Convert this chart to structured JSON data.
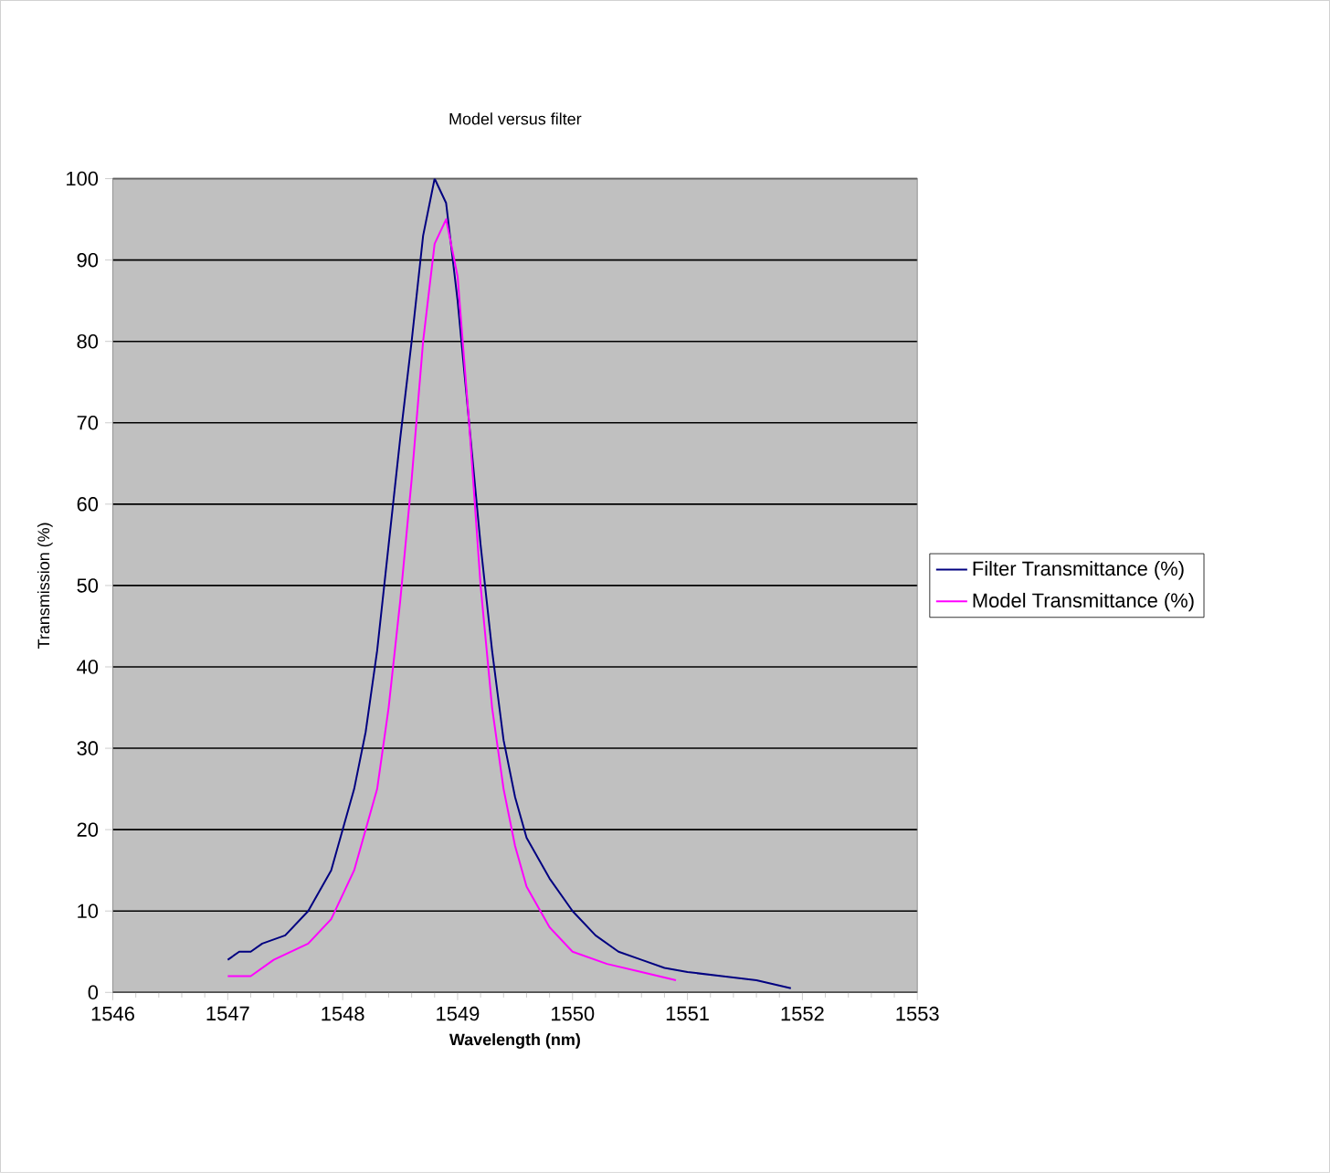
{
  "chart_data": {
    "type": "line",
    "title": "Model versus filter",
    "xlabel": "Wavelength (nm)",
    "ylabel": "Transmission (%)",
    "xlim": [
      1546,
      1553
    ],
    "xticks": [
      1546,
      1547,
      1548,
      1549,
      1550,
      1551,
      1552,
      1553
    ],
    "ylim": [
      0,
      100
    ],
    "yticks": [
      0,
      10,
      20,
      30,
      40,
      50,
      60,
      70,
      80,
      90,
      100
    ],
    "grid": "y",
    "legend": "right",
    "marker": "none",
    "line_style": "solid",
    "series": [
      {
        "name": "Filter Transmittance (%)",
        "color": "#000080",
        "x": [
          1547.0,
          1547.1,
          1547.2,
          1547.3,
          1547.5,
          1547.7,
          1547.9,
          1548.0,
          1548.1,
          1548.2,
          1548.3,
          1548.4,
          1548.5,
          1548.6,
          1548.7,
          1548.8,
          1548.9,
          1549.0,
          1549.1,
          1549.2,
          1549.3,
          1549.4,
          1549.5,
          1549.6,
          1549.8,
          1550.0,
          1550.2,
          1550.4,
          1550.6,
          1550.8,
          1551.0,
          1551.3,
          1551.6,
          1551.9
        ],
        "values": [
          4,
          5,
          5,
          6,
          7,
          10,
          15,
          20,
          25,
          32,
          42,
          55,
          68,
          80,
          93,
          100,
          97,
          85,
          70,
          55,
          42,
          31,
          24,
          19,
          14,
          10,
          7,
          5,
          4,
          3,
          2.5,
          2,
          1.5,
          0.5
        ]
      },
      {
        "name": "Model Transmittance (%)",
        "color": "#ff00ff",
        "x": [
          1547.0,
          1547.2,
          1547.4,
          1547.7,
          1547.9,
          1548.1,
          1548.3,
          1548.4,
          1548.5,
          1548.6,
          1548.7,
          1548.8,
          1548.9,
          1549.0,
          1549.1,
          1549.2,
          1549.3,
          1549.4,
          1549.5,
          1549.6,
          1549.8,
          1550.0,
          1550.3,
          1550.6,
          1550.9
        ],
        "values": [
          2,
          2,
          4,
          6,
          9,
          15,
          25,
          35,
          48,
          63,
          80,
          92,
          95,
          88,
          70,
          50,
          35,
          25,
          18,
          13,
          8,
          5,
          3.5,
          2.5,
          1.5
        ]
      }
    ]
  }
}
